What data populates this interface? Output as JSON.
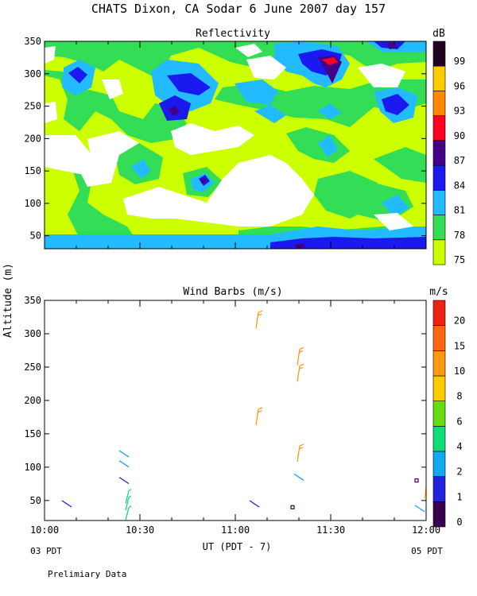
{
  "header": {
    "title": "CHATS Dixon, CA  Sodar   6 June 2007   day 157",
    "ylabel": "Altitude (m)",
    "xlabel": "UT  (PDT - 7)",
    "left_local": "03 PDT",
    "right_local": "05 PDT",
    "footer": "Prelimiary Data"
  },
  "chart_data": [
    {
      "type": "heatmap",
      "title": "Reflectivity",
      "colorbar_unit": "dB",
      "y_ticks": [
        50,
        100,
        150,
        200,
        250,
        300,
        350
      ],
      "ylim": [
        30,
        350
      ],
      "x_ticks": [
        "10:00",
        "10:30",
        "11:00",
        "11:30",
        "12:00"
      ],
      "colorbar": {
        "levels": [
          75,
          78,
          81,
          84,
          87,
          90,
          93,
          96,
          99
        ],
        "colors": [
          "#ccff00",
          "#33dd55",
          "#22bbff",
          "#1a1aee",
          "#440088",
          "#ff0022",
          "#ff8800",
          "#ffcc00",
          "#220022"
        ]
      }
    },
    {
      "type": "scatter",
      "title": "Wind Barbs (m/s)",
      "colorbar_unit": "m/s",
      "y_ticks": [
        50,
        100,
        150,
        200,
        250,
        300,
        350
      ],
      "ylim": [
        20,
        350
      ],
      "x_ticks": [
        "10:00",
        "10:30",
        "11:00",
        "11:30",
        "12:00"
      ],
      "xlim_minutes": [
        0,
        120
      ],
      "colorbar": {
        "levels": [
          0,
          1,
          2,
          4,
          6,
          8,
          10,
          15,
          20
        ],
        "colors": [
          "#3a0050",
          "#2222dd",
          "#11aaee",
          "#11dd77",
          "#66dd11",
          "#ffcc00",
          "#ff9911",
          "#ff6611",
          "#ee2211"
        ]
      },
      "barbs": [
        {
          "t": 7,
          "z": 45,
          "s": 1
        },
        {
          "t": 25,
          "z": 120,
          "s": 2
        },
        {
          "t": 25,
          "z": 105,
          "s": 2
        },
        {
          "t": 25,
          "z": 80,
          "s": 1
        },
        {
          "t": 26,
          "z": 55,
          "s": 4
        },
        {
          "t": 26,
          "z": 45,
          "s": 4
        },
        {
          "t": 26,
          "z": 30,
          "s": 4
        },
        {
          "t": 67,
          "z": 320,
          "s": 10
        },
        {
          "t": 67,
          "z": 175,
          "s": 10
        },
        {
          "t": 66,
          "z": 45,
          "s": 1
        },
        {
          "t": 80,
          "z": 265,
          "s": 10
        },
        {
          "t": 80,
          "z": 240,
          "s": 10
        },
        {
          "t": 80,
          "z": 120,
          "s": 10
        },
        {
          "t": 80,
          "z": 85,
          "s": 2
        },
        {
          "t": 78,
          "z": 40,
          "s": 0
        },
        {
          "t": 117,
          "z": 80,
          "s": 0
        },
        {
          "t": 118,
          "z": 38,
          "s": 2
        },
        {
          "t": 120,
          "z": 65,
          "s": 8
        }
      ]
    }
  ]
}
